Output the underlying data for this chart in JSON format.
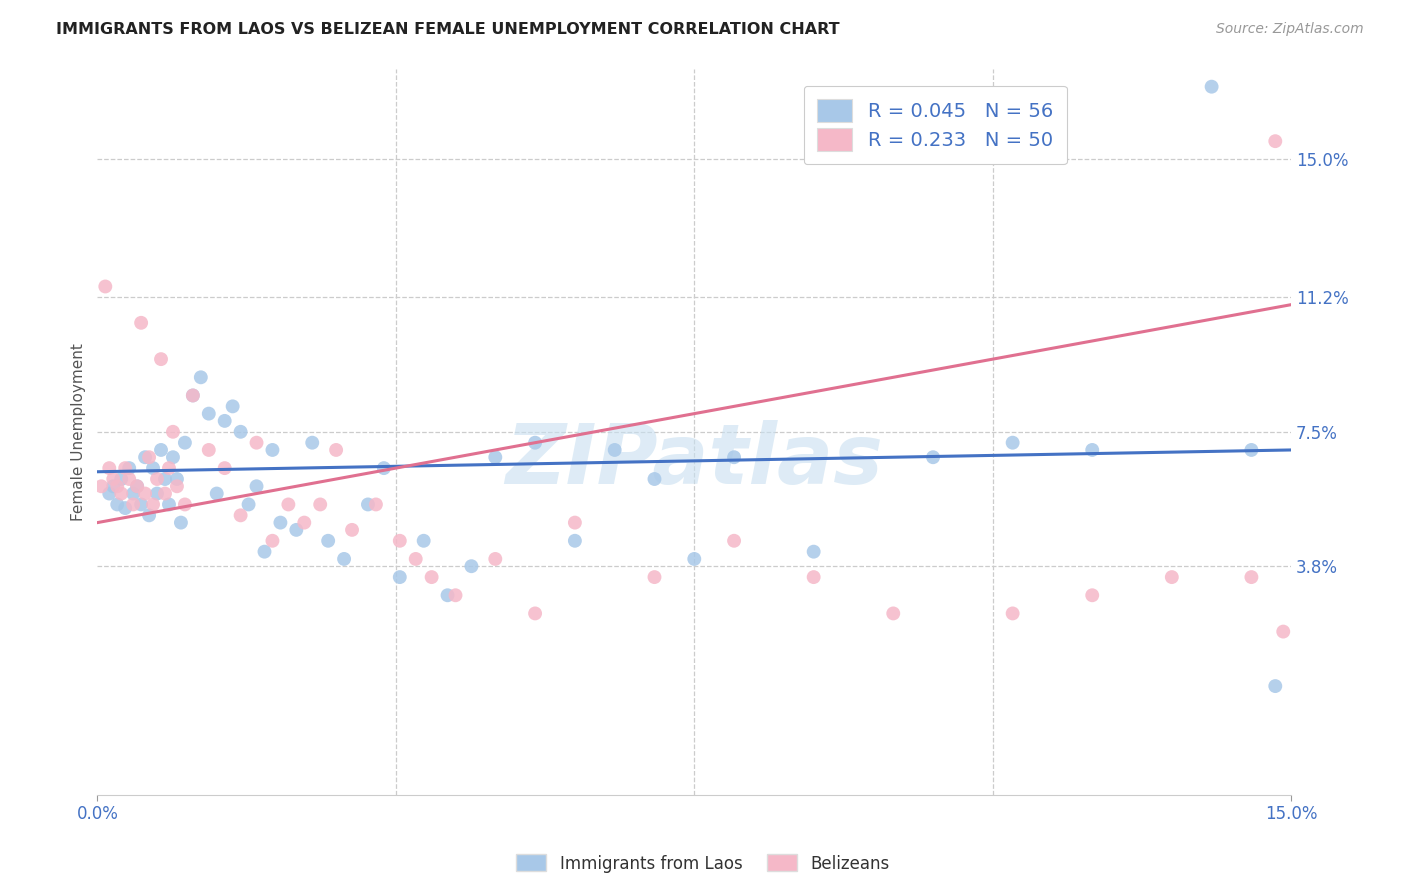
{
  "title": "IMMIGRANTS FROM LAOS VS BELIZEAN FEMALE UNEMPLOYMENT CORRELATION CHART",
  "source": "Source: ZipAtlas.com",
  "ylabel": "Female Unemployment",
  "ytick_labels": [
    "15.0%",
    "11.2%",
    "7.5%",
    "3.8%"
  ],
  "ytick_values": [
    15.0,
    11.2,
    7.5,
    3.8
  ],
  "xmin": 0.0,
  "xmax": 15.0,
  "ymin": -2.5,
  "ymax": 17.5,
  "legend_entry1": "R = 0.045   N = 56",
  "legend_entry2": "R = 0.233   N = 50",
  "legend_label1": "Immigrants from Laos",
  "legend_label2": "Belizeans",
  "color_blue": "#a8c8e8",
  "color_pink": "#f5b8c8",
  "color_line_blue": "#4472c4",
  "color_line_pink": "#e07090",
  "watermark_color": "#c8dff0",
  "blue_line_start_y": 6.4,
  "blue_line_end_y": 7.0,
  "pink_line_start_y": 5.0,
  "pink_line_end_y": 11.0,
  "blue_x": [
    0.15,
    0.2,
    0.25,
    0.3,
    0.35,
    0.4,
    0.45,
    0.5,
    0.55,
    0.6,
    0.65,
    0.7,
    0.75,
    0.8,
    0.85,
    0.9,
    0.95,
    1.0,
    1.05,
    1.1,
    1.2,
    1.3,
    1.4,
    1.5,
    1.6,
    1.7,
    1.8,
    1.9,
    2.0,
    2.1,
    2.2,
    2.3,
    2.5,
    2.7,
    2.9,
    3.1,
    3.4,
    3.6,
    3.8,
    4.1,
    4.4,
    4.7,
    5.0,
    5.5,
    6.0,
    6.5,
    7.0,
    7.5,
    8.0,
    9.0,
    10.5,
    11.5,
    12.5,
    14.0,
    14.5,
    14.8
  ],
  "blue_y": [
    5.8,
    6.0,
    5.5,
    6.2,
    5.4,
    6.5,
    5.8,
    6.0,
    5.5,
    6.8,
    5.2,
    6.5,
    5.8,
    7.0,
    6.2,
    5.5,
    6.8,
    6.2,
    5.0,
    7.2,
    8.5,
    9.0,
    8.0,
    5.8,
    7.8,
    8.2,
    7.5,
    5.5,
    6.0,
    4.2,
    7.0,
    5.0,
    4.8,
    7.2,
    4.5,
    4.0,
    5.5,
    6.5,
    3.5,
    4.5,
    3.0,
    3.8,
    6.8,
    7.2,
    4.5,
    7.0,
    6.2,
    4.0,
    6.8,
    4.2,
    6.8,
    7.2,
    7.0,
    17.0,
    7.0,
    0.5
  ],
  "pink_x": [
    0.05,
    0.1,
    0.15,
    0.2,
    0.25,
    0.3,
    0.35,
    0.4,
    0.45,
    0.5,
    0.55,
    0.6,
    0.65,
    0.7,
    0.75,
    0.8,
    0.85,
    0.9,
    0.95,
    1.0,
    1.1,
    1.2,
    1.4,
    1.6,
    1.8,
    2.0,
    2.2,
    2.4,
    2.6,
    2.8,
    3.0,
    3.2,
    3.5,
    3.8,
    4.0,
    4.2,
    4.5,
    5.0,
    5.5,
    6.0,
    7.0,
    8.0,
    9.0,
    10.0,
    11.5,
    12.5,
    13.5,
    14.5,
    14.8,
    14.9
  ],
  "pink_y": [
    6.0,
    11.5,
    6.5,
    6.2,
    6.0,
    5.8,
    6.5,
    6.2,
    5.5,
    6.0,
    10.5,
    5.8,
    6.8,
    5.5,
    6.2,
    9.5,
    5.8,
    6.5,
    7.5,
    6.0,
    5.5,
    8.5,
    7.0,
    6.5,
    5.2,
    7.2,
    4.5,
    5.5,
    5.0,
    5.5,
    7.0,
    4.8,
    5.5,
    4.5,
    4.0,
    3.5,
    3.0,
    4.0,
    2.5,
    5.0,
    3.5,
    4.5,
    3.5,
    2.5,
    2.5,
    3.0,
    3.5,
    3.5,
    15.5,
    2.0
  ]
}
